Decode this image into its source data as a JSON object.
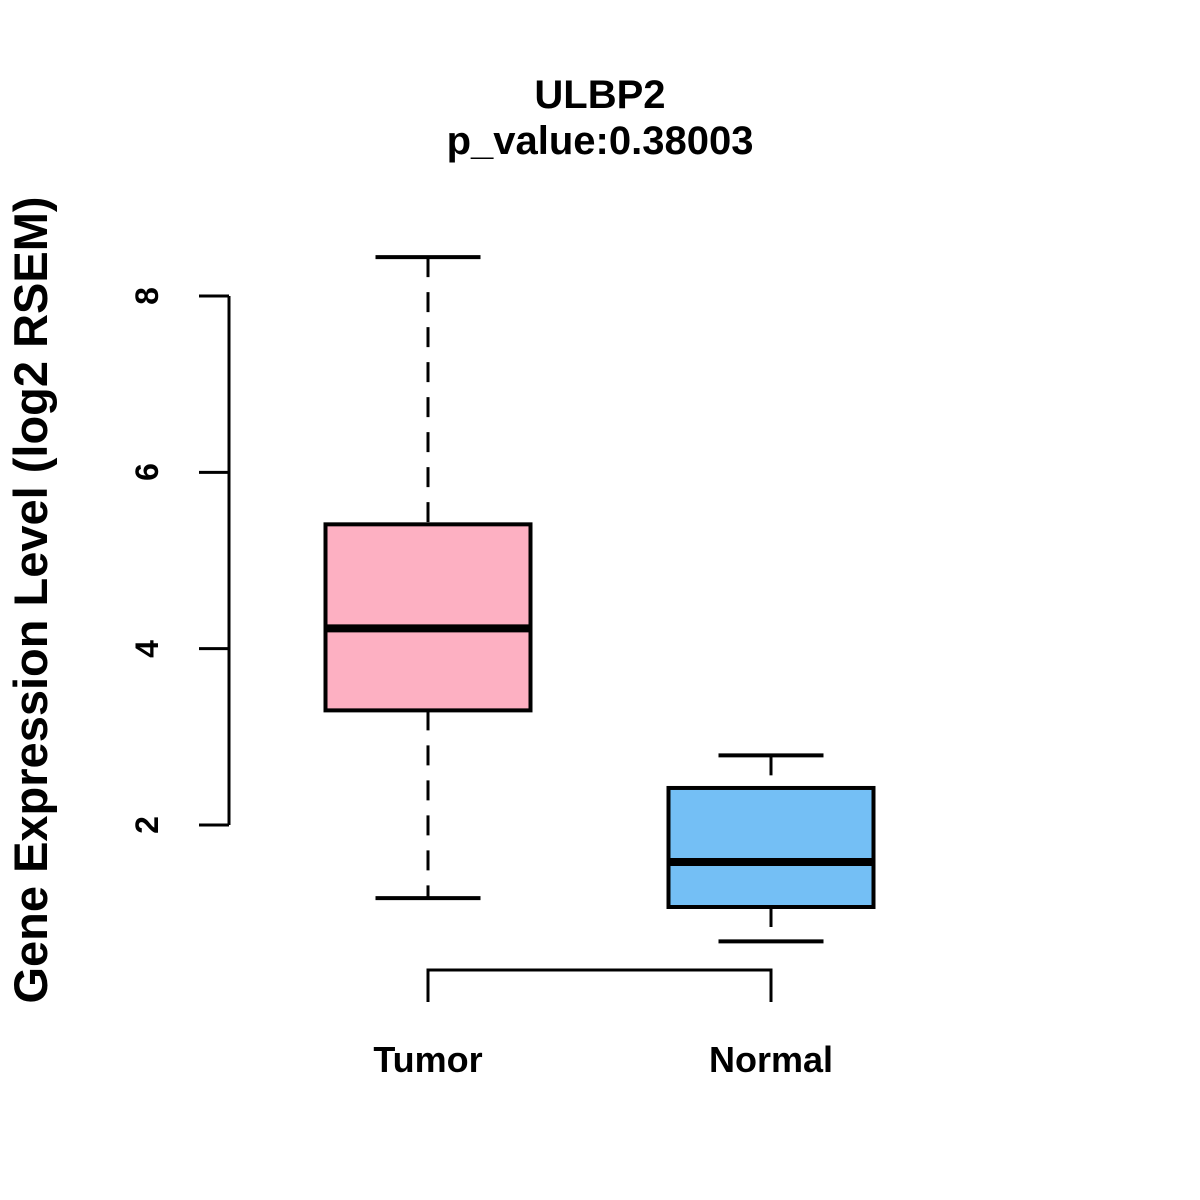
{
  "chart_data": {
    "type": "boxplot",
    "title": "ULBP2",
    "subtitle": "p_value:0.38003",
    "ylabel": "Gene Expression Level (log2 RSEM)",
    "xlabel": "",
    "categories": [
      "Tumor",
      "Normal"
    ],
    "yticks": [
      2,
      4,
      6,
      8
    ],
    "ylim": [
      0.45,
      8.75
    ],
    "grid": false,
    "legend": "none",
    "series": [
      {
        "name": "Tumor",
        "fill_color": "#FDB0C2",
        "whisker_low": 1.17,
        "q1": 3.3,
        "median": 4.23,
        "q3": 5.41,
        "whisker_high": 8.44
      },
      {
        "name": "Normal",
        "fill_color": "#74BFF5",
        "whisker_low": 0.68,
        "q1": 1.07,
        "median": 1.58,
        "q3": 2.42,
        "whisker_high": 2.79
      }
    ],
    "comparison_bracket": {
      "between": [
        "Tumor",
        "Normal"
      ]
    },
    "stroke_color": "#000000",
    "background_color": "#FFFFFF"
  }
}
